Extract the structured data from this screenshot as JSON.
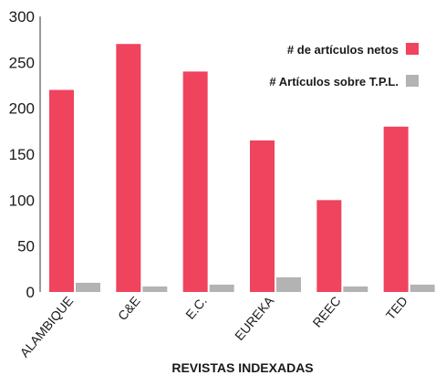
{
  "chart_data": {
    "type": "bar",
    "categories": [
      "ALAMBIQUE",
      "C&E",
      "E.C.",
      "EUREKA",
      "REEC",
      "TED"
    ],
    "series": [
      {
        "name": "# de artículos netos",
        "values": [
          220,
          270,
          240,
          165,
          100,
          180
        ],
        "color": "#f0435e"
      },
      {
        "name": "# Artículos sobre T.P.L.",
        "values": [
          10,
          6,
          8,
          16,
          6,
          8
        ],
        "color": "#b3b3b3"
      }
    ],
    "xlabel": "REVISTAS INDEXADAS",
    "ylabel": "",
    "ylim": [
      0,
      300
    ],
    "yticks": [
      0,
      50,
      100,
      150,
      200,
      250,
      300
    ],
    "grid": false,
    "legend_position": "top-right"
  }
}
